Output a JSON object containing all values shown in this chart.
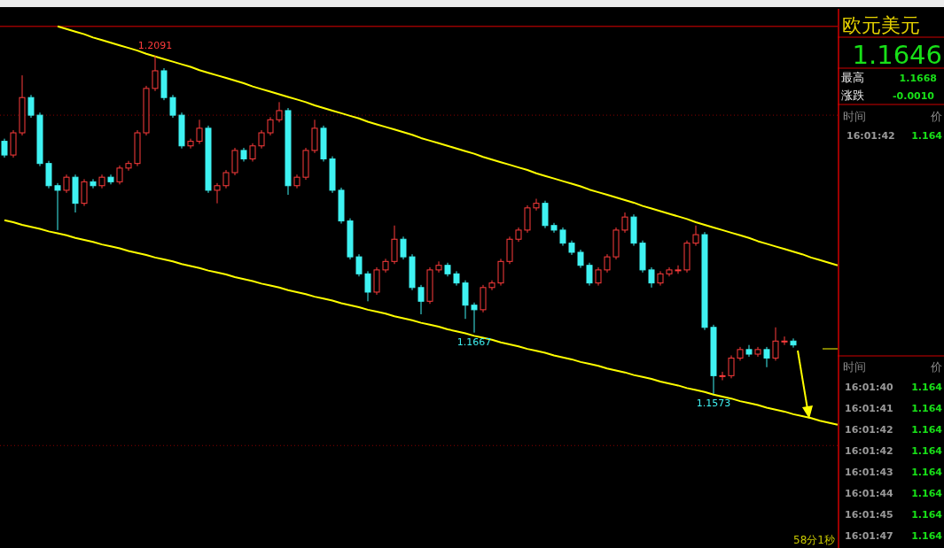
{
  "chart_data": {
    "type": "candlestick",
    "categories": [
      null,
      null,
      null,
      null,
      null,
      null,
      null,
      null,
      null,
      null,
      null,
      null,
      null,
      null,
      null,
      null,
      null,
      null,
      null,
      null,
      null,
      null,
      null,
      null,
      null,
      null,
      null,
      null,
      null,
      null,
      null,
      null,
      null,
      null,
      null,
      null,
      null,
      null,
      null,
      null,
      null,
      null,
      null,
      null,
      null,
      null,
      null,
      null,
      null,
      null,
      null,
      null,
      null,
      null,
      null,
      null,
      null,
      null,
      null,
      null,
      null,
      null,
      null,
      null,
      null,
      null,
      null,
      null,
      null,
      null,
      null,
      null,
      null,
      null,
      null,
      null,
      null,
      null,
      null,
      null,
      null,
      null,
      null,
      null,
      null,
      null,
      null,
      null,
      null,
      null,
      null,
      null,
      null,
      null,
      null
    ],
    "ohlc": [
      [
        1.196,
        1.1964,
        1.1935,
        1.1939
      ],
      [
        1.1939,
        1.1977,
        1.1935,
        1.1973
      ],
      [
        1.1973,
        1.2061,
        1.1969,
        1.2027
      ],
      [
        1.2027,
        1.2031,
        1.1996,
        1.2
      ],
      [
        1.2,
        1.2004,
        1.1922,
        1.1926
      ],
      [
        1.1926,
        1.193,
        1.1888,
        1.1892
      ],
      [
        1.1892,
        1.1896,
        1.1824,
        1.1885
      ],
      [
        1.1885,
        1.1909,
        1.1881,
        1.1905
      ],
      [
        1.1905,
        1.1909,
        1.1851,
        1.1865
      ],
      [
        1.1865,
        1.1902,
        1.1861,
        1.1898
      ],
      [
        1.1898,
        1.1902,
        1.1888,
        1.1892
      ],
      [
        1.1892,
        1.1909,
        1.1888,
        1.1905
      ],
      [
        1.1905,
        1.1909,
        1.1894,
        1.1898
      ],
      [
        1.1898,
        1.1923,
        1.1894,
        1.1919
      ],
      [
        1.1919,
        1.193,
        1.1915,
        1.1926
      ],
      [
        1.1926,
        1.1977,
        1.1922,
        1.1973
      ],
      [
        1.1973,
        1.2045,
        1.1969,
        1.2041
      ],
      [
        1.2041,
        1.2091,
        1.2037,
        1.2068
      ],
      [
        1.2068,
        1.2072,
        1.2023,
        1.2027
      ],
      [
        1.2027,
        1.2031,
        1.1996,
        1.2
      ],
      [
        1.2,
        1.2004,
        1.1949,
        1.1953
      ],
      [
        1.1953,
        1.1964,
        1.1949,
        1.196
      ],
      [
        1.196,
        1.1993,
        1.1956,
        1.198
      ],
      [
        1.198,
        1.1984,
        1.1881,
        1.1885
      ],
      [
        1.1885,
        1.1896,
        1.1865,
        1.1892
      ],
      [
        1.1892,
        1.1916,
        1.1888,
        1.1912
      ],
      [
        1.1912,
        1.195,
        1.1908,
        1.1946
      ],
      [
        1.1946,
        1.195,
        1.1929,
        1.1933
      ],
      [
        1.1933,
        1.1957,
        1.1929,
        1.1953
      ],
      [
        1.1953,
        1.1977,
        1.1949,
        1.1973
      ],
      [
        1.1973,
        1.1997,
        1.1969,
        1.1993
      ],
      [
        1.1993,
        1.202,
        1.1989,
        1.2007
      ],
      [
        1.2007,
        1.2011,
        1.1878,
        1.1892
      ],
      [
        1.1892,
        1.1909,
        1.1888,
        1.1905
      ],
      [
        1.1905,
        1.195,
        1.1901,
        1.1946
      ],
      [
        1.1946,
        1.1993,
        1.1942,
        1.198
      ],
      [
        1.198,
        1.1984,
        1.1929,
        1.1933
      ],
      [
        1.1933,
        1.1937,
        1.1881,
        1.1885
      ],
      [
        1.1885,
        1.1889,
        1.1834,
        1.1838
      ],
      [
        1.1838,
        1.1842,
        1.1779,
        1.1783
      ],
      [
        1.1783,
        1.1787,
        1.1753,
        1.1757
      ],
      [
        1.1757,
        1.1761,
        1.1715,
        1.1729
      ],
      [
        1.1729,
        1.1767,
        1.1725,
        1.1763
      ],
      [
        1.1763,
        1.178,
        1.1759,
        1.1776
      ],
      [
        1.1776,
        1.1831,
        1.1772,
        1.181
      ],
      [
        1.181,
        1.1814,
        1.1779,
        1.1783
      ],
      [
        1.1783,
        1.1787,
        1.1732,
        1.1736
      ],
      [
        1.1736,
        1.174,
        1.1695,
        1.1715
      ],
      [
        1.1715,
        1.1767,
        1.1711,
        1.1763
      ],
      [
        1.1763,
        1.1776,
        1.1759,
        1.177
      ],
      [
        1.177,
        1.1774,
        1.1753,
        1.1757
      ],
      [
        1.1757,
        1.1761,
        1.1739,
        1.1743
      ],
      [
        1.1743,
        1.1747,
        1.1688,
        1.1709
      ],
      [
        1.1709,
        1.1713,
        1.1667,
        1.1702
      ],
      [
        1.1702,
        1.174,
        1.1698,
        1.1736
      ],
      [
        1.1736,
        1.1747,
        1.1732,
        1.1743
      ],
      [
        1.1743,
        1.178,
        1.1739,
        1.1776
      ],
      [
        1.1776,
        1.1814,
        1.1772,
        1.181
      ],
      [
        1.181,
        1.1828,
        1.1806,
        1.1824
      ],
      [
        1.1824,
        1.1862,
        1.182,
        1.1858
      ],
      [
        1.1858,
        1.1872,
        1.1854,
        1.1865
      ],
      [
        1.1865,
        1.1869,
        1.1827,
        1.1831
      ],
      [
        1.1831,
        1.1835,
        1.182,
        1.1824
      ],
      [
        1.1824,
        1.1828,
        1.18,
        1.1804
      ],
      [
        1.1804,
        1.1808,
        1.1786,
        1.179
      ],
      [
        1.179,
        1.1794,
        1.1766,
        1.177
      ],
      [
        1.177,
        1.1774,
        1.1739,
        1.1743
      ],
      [
        1.1743,
        1.1767,
        1.1739,
        1.1763
      ],
      [
        1.1763,
        1.1787,
        1.1759,
        1.1783
      ],
      [
        1.1783,
        1.1828,
        1.1779,
        1.1824
      ],
      [
        1.1824,
        1.1851,
        1.182,
        1.1844
      ],
      [
        1.1844,
        1.1848,
        1.18,
        1.1804
      ],
      [
        1.1804,
        1.1808,
        1.1759,
        1.1763
      ],
      [
        1.1763,
        1.1767,
        1.1736,
        1.1743
      ],
      [
        1.1743,
        1.1761,
        1.1739,
        1.1757
      ],
      [
        1.1757,
        1.1767,
        1.1753,
        1.1763
      ],
      [
        1.1763,
        1.177,
        1.1757,
        1.1763
      ],
      [
        1.1763,
        1.1808,
        1.1759,
        1.1804
      ],
      [
        1.1804,
        1.1831,
        1.18,
        1.1817
      ],
      [
        1.1817,
        1.1821,
        1.1671,
        1.1675
      ],
      [
        1.1675,
        1.1679,
        1.1573,
        1.1601
      ],
      [
        1.1601,
        1.1607,
        1.1594,
        1.1601
      ],
      [
        1.1601,
        1.1632,
        1.1597,
        1.1628
      ],
      [
        1.1628,
        1.1645,
        1.1624,
        1.1641
      ],
      [
        1.1641,
        1.1648,
        1.163,
        1.1634
      ],
      [
        1.1634,
        1.1645,
        1.163,
        1.1641
      ],
      [
        1.1641,
        1.1645,
        1.1614,
        1.1628
      ],
      [
        1.1628,
        1.1675,
        1.1624,
        1.1654
      ],
      [
        1.1654,
        1.1661,
        1.1648,
        1.1654
      ],
      [
        1.1654,
        1.1658,
        1.1644,
        1.1648
      ],
      null,
      null,
      null,
      null,
      null
    ],
    "series": [
      {
        "type": "line",
        "color": "#ffff00",
        "values": [
          null,
          null,
          null,
          null,
          null,
          null,
          1.2136,
          1.2132,
          1.2128,
          1.2124,
          1.2119,
          1.2115,
          1.2111,
          1.2107,
          1.2103,
          1.2099,
          1.2094,
          1.209,
          1.2086,
          1.2082,
          1.2078,
          1.2074,
          1.2069,
          1.2065,
          1.2061,
          1.2057,
          1.2053,
          1.2049,
          1.2044,
          1.204,
          1.2036,
          1.2032,
          1.2028,
          1.2024,
          1.202,
          1.2015,
          1.2011,
          1.2007,
          1.2003,
          1.1999,
          1.1995,
          1.199,
          1.1986,
          1.1982,
          1.1978,
          1.1974,
          1.197,
          1.1965,
          1.1961,
          1.1957,
          1.1953,
          1.1949,
          1.1945,
          1.1941,
          1.1936,
          1.1932,
          1.1928,
          1.1924,
          1.192,
          1.1916,
          1.1911,
          1.1907,
          1.1903,
          1.1899,
          1.1895,
          1.1891,
          1.1886,
          1.1882,
          1.1878,
          1.1874,
          1.187,
          1.1866,
          1.1861,
          1.1857,
          1.1853,
          1.1849,
          1.1845,
          1.1841,
          1.1836,
          1.1832,
          1.1828,
          1.1824,
          1.182,
          1.1816,
          1.1812,
          1.1807,
          1.1803,
          1.1799,
          1.1795,
          1.1791,
          1.1787,
          1.1782,
          1.1778,
          1.1774,
          1.177
        ]
      },
      {
        "type": "line",
        "color": "#ffff00",
        "values": [
          1.1839,
          1.1836,
          1.1832,
          1.1829,
          1.1826,
          1.1822,
          1.1819,
          1.1816,
          1.1812,
          1.1809,
          1.1806,
          1.1802,
          1.1799,
          1.1796,
          1.1792,
          1.1789,
          1.1786,
          1.1782,
          1.1779,
          1.1776,
          1.1772,
          1.1769,
          1.1766,
          1.1762,
          1.1759,
          1.1756,
          1.1752,
          1.1749,
          1.1746,
          1.1742,
          1.1739,
          1.1736,
          1.1732,
          1.1729,
          1.1726,
          1.1722,
          1.1719,
          1.1716,
          1.1712,
          1.1709,
          1.1706,
          1.1702,
          1.1699,
          1.1696,
          1.1692,
          1.1689,
          1.1686,
          1.1682,
          1.1679,
          1.1676,
          1.1672,
          1.1669,
          1.1666,
          1.1662,
          1.1659,
          1.1656,
          1.1652,
          1.1649,
          1.1646,
          1.1642,
          1.1639,
          1.1636,
          1.1632,
          1.1629,
          1.1626,
          1.1622,
          1.1619,
          1.1616,
          1.1612,
          1.1609,
          1.1606,
          1.1602,
          1.1599,
          1.1596,
          1.1592,
          1.1589,
          1.1586,
          1.1582,
          1.1579,
          1.1576,
          1.1572,
          1.1569,
          1.1566,
          1.1562,
          1.1559,
          1.1556,
          1.1552,
          1.1549,
          1.1546,
          1.1542,
          1.1539,
          1.1536,
          1.1532,
          1.1529,
          1.1526
        ]
      }
    ],
    "ref_lines": [
      {
        "axis": "y",
        "value": 1.2136,
        "color": "#e00000",
        "line_style": "solid"
      },
      {
        "axis": "y",
        "value": 1.2,
        "color": "#8a0000",
        "line_style": "dotted"
      },
      {
        "axis": "y",
        "value": 1.1494,
        "color": "#8a0000",
        "line_style": "dotted"
      }
    ],
    "annotations": [
      {
        "text": "1.2091",
        "y": 1.2091
      },
      {
        "text": "1.1667",
        "y": 1.1667
      },
      {
        "text": "1.1573",
        "y": 1.1573
      },
      "58分1秒",
      "欧元美元",
      "1.1646",
      "最高",
      "1.1668",
      "涨跌",
      "-0.0010",
      "时间",
      "价",
      "16:01:42",
      "1.164",
      "时间",
      "价",
      "16:01:40",
      "1.164",
      "16:01:41",
      "1.164",
      "16:01:42",
      "1.164",
      "16:01:42",
      "1.164",
      "16:01:43",
      "1.164",
      "16:01:44",
      "1.164",
      "16:01:45",
      "1.164",
      "16:01:47",
      "1.164"
    ]
  }
}
